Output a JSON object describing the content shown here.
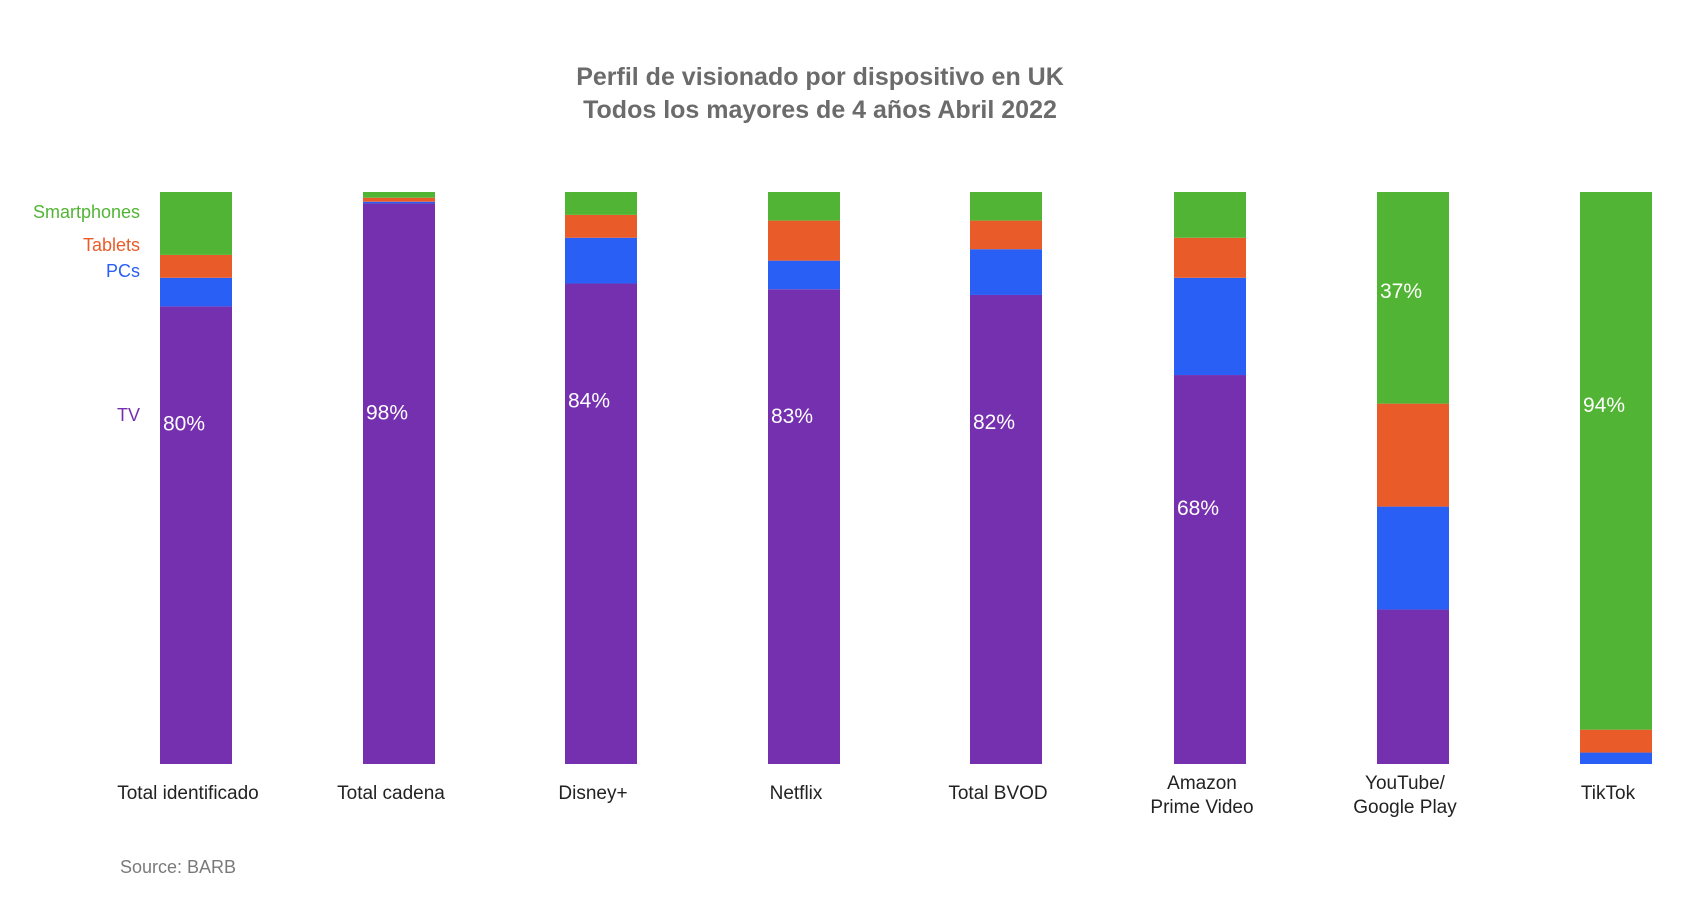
{
  "chart_data": {
    "type": "bar",
    "stacked": true,
    "title": "Perfil de visionado por dispositivo en UK",
    "subtitle": "Todos los mayores de 4 años Abril 2022",
    "categories": [
      [
        "Total identificado"
      ],
      [
        "Total cadena"
      ],
      [
        "Disney+"
      ],
      [
        "Netflix"
      ],
      [
        "Total BVOD"
      ],
      [
        "Amazon",
        "Prime Video"
      ],
      [
        "YouTube/",
        "Google Play"
      ],
      [
        "TikTok"
      ]
    ],
    "ylim": [
      0,
      100
    ],
    "grid": false,
    "legend_position": "left",
    "series": [
      {
        "name": "TV",
        "color": "#7530b0",
        "values": [
          80,
          98,
          84,
          83,
          82,
          68,
          27,
          0
        ]
      },
      {
        "name": "PCs",
        "color": "#2a5ff5",
        "values": [
          5,
          0.3,
          8,
          5,
          8,
          17,
          18,
          2
        ]
      },
      {
        "name": "Tablets",
        "color": "#e95c2a",
        "values": [
          4,
          0.7,
          4,
          7,
          5,
          7,
          18,
          4
        ]
      },
      {
        "name": "Smartphones",
        "color": "#52b434",
        "values": [
          11,
          1,
          4,
          5,
          5,
          8,
          37,
          94
        ]
      }
    ],
    "data_labels": [
      {
        "series": "TV",
        "category_index": 0,
        "text": "80%"
      },
      {
        "series": "TV",
        "category_index": 1,
        "text": "98%"
      },
      {
        "series": "TV",
        "category_index": 2,
        "text": "84%"
      },
      {
        "series": "TV",
        "category_index": 3,
        "text": "83%"
      },
      {
        "series": "TV",
        "category_index": 4,
        "text": "82%"
      },
      {
        "series": "TV",
        "category_index": 5,
        "text": "68%"
      },
      {
        "series": "Smartphones",
        "category_index": 6,
        "text": "37%"
      },
      {
        "series": "Smartphones",
        "category_index": 7,
        "text": "94%"
      }
    ],
    "source": "Source: BARB"
  }
}
